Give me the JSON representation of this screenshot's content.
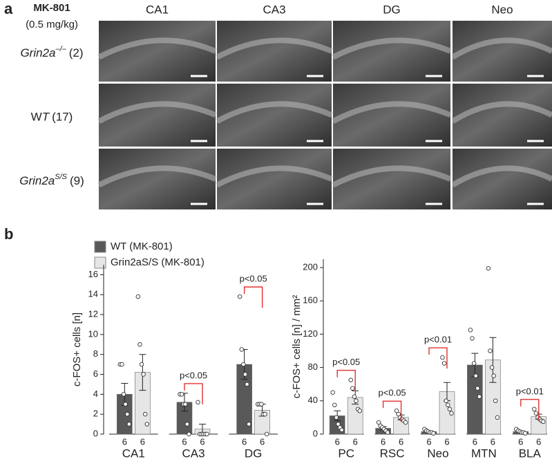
{
  "panel_a": {
    "label": "a",
    "treatment": "MK-801",
    "dose": "(0.5 mg/kg)",
    "columns": [
      "CA1",
      "CA3",
      "DG",
      "Neo"
    ],
    "rows": [
      {
        "gene": "Grin2a",
        "sup": "–/–",
        "n": "(2)"
      },
      {
        "gene": "W",
        "sup": "",
        "n": "(17)",
        "italic": "T"
      },
      {
        "gene": "Grin2a",
        "sup": "S/S",
        "n": "(9)"
      }
    ]
  },
  "panel_b": {
    "label": "b"
  },
  "chart_data": [
    {
      "type": "bar",
      "y_label": "c-FOS+ cells [n]",
      "categories": [
        "CA1",
        "CA3",
        "DG"
      ],
      "ylim": [
        0,
        17
      ],
      "yticks": [
        0,
        2,
        4,
        6,
        8,
        10,
        12,
        14,
        16
      ],
      "series": [
        {
          "name": "WT (MK-801)",
          "color": "#595959",
          "values": [
            4.0,
            3.2,
            7.0
          ],
          "errors": [
            1.1,
            0.9,
            1.5
          ],
          "n": [
            6,
            6,
            6
          ],
          "points": [
            [
              7,
              7,
              4,
              3,
              2,
              1
            ],
            [
              4,
              4,
              3,
              3,
              1,
              0
            ],
            [
              13.8,
              8.5,
              7,
              6,
              5,
              1
            ]
          ]
        },
        {
          "name": "Grin2aS/S (MK-801)",
          "color": "#e6e6e6",
          "values": [
            6.2,
            0.5,
            2.4
          ],
          "errors": [
            1.8,
            0.5,
            0.6
          ],
          "n": [
            6,
            6,
            6
          ],
          "points": [
            [
              13.8,
              9,
              7,
              6,
              2,
              1
            ],
            [
              3.2,
              0,
              0,
              0,
              0,
              0
            ],
            [
              3,
              3,
              3,
              2,
              2,
              0
            ]
          ]
        }
      ],
      "annotations": [
        {
          "text": "p<0.05",
          "category": "CA3"
        },
        {
          "text": "p<0.05",
          "category": "DG"
        }
      ]
    },
    {
      "type": "bar",
      "y_label": "c-FOS+ cells [n] / mm²",
      "categories": [
        "PC",
        "RSC",
        "Neo",
        "MTN",
        "BLA"
      ],
      "ylim": [
        0,
        210
      ],
      "yticks": [
        0,
        40,
        80,
        120,
        160,
        200
      ],
      "series": [
        {
          "name": "WT (MK-801)",
          "color": "#595959",
          "values": [
            22,
            7,
            3,
            83,
            3
          ],
          "errors": [
            6,
            2,
            1,
            14,
            1
          ],
          "n": [
            6,
            6,
            6,
            6,
            6
          ],
          "points": [
            [
              50,
              35,
              20,
              12,
              8,
              5
            ],
            [
              14,
              10,
              8,
              6,
              4,
              2
            ],
            [
              6,
              4,
              3,
              2,
              2,
              1
            ],
            [
              125,
              115,
              85,
              70,
              55,
              45
            ],
            [
              6,
              4,
              3,
              2,
              2,
              1
            ]
          ]
        },
        {
          "name": "Grin2aS/S (MK-801)",
          "color": "#e6e6e6",
          "values": [
            44,
            20,
            51,
            89,
            21
          ],
          "errors": [
            8,
            3,
            11,
            27,
            3
          ],
          "n": [
            6,
            6,
            6,
            6,
            6
          ],
          "points": [
            [
              65,
              55,
              45,
              40,
              30,
              28
            ],
            [
              28,
              24,
              20,
              18,
              16,
              14
            ],
            [
              92,
              85,
              40,
              35,
              30,
              25
            ],
            [
              199,
              100,
              80,
              70,
              40,
              20
            ],
            [
              30,
              25,
              20,
              18,
              16,
              15
            ]
          ]
        }
      ],
      "annotations": [
        {
          "text": "p<0.05",
          "category": "PC"
        },
        {
          "text": "p<0.05",
          "category": "RSC"
        },
        {
          "text": "p<0.01",
          "category": "Neo"
        },
        {
          "text": "p<0.01",
          "category": "BLA"
        }
      ]
    }
  ]
}
